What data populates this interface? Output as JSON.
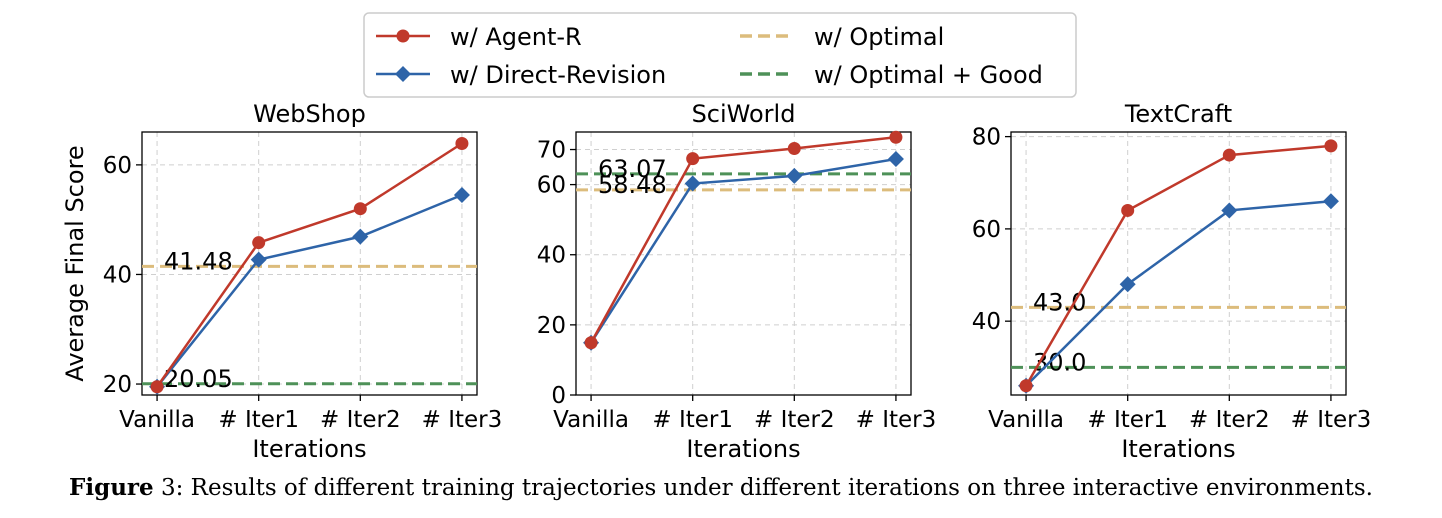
{
  "legend": {
    "items": [
      {
        "label": "w/ Agent-R",
        "color": "#c0392b",
        "style": "line-circle"
      },
      {
        "label": "w/ Direct-Revision",
        "color": "#2e64a8",
        "style": "line-diamond"
      },
      {
        "label": "w/ Optimal",
        "color": "#dcbc7c",
        "style": "dashed"
      },
      {
        "label": "w/ Optimal + Good",
        "color": "#4e9158",
        "style": "dashed"
      }
    ]
  },
  "shared": {
    "ylabel": "Average Final Score",
    "xlabel": "Iterations",
    "categories": [
      "Vanilla",
      "# Iter1",
      "# Iter2",
      "# Iter3"
    ]
  },
  "chart_data": [
    {
      "type": "line",
      "title": "WebShop",
      "xlabel": "Iterations",
      "ylabel": "Average Final Score",
      "categories": [
        "Vanilla",
        "# Iter1",
        "# Iter2",
        "# Iter3"
      ],
      "ylim": [
        18,
        66
      ],
      "yticks": [
        20,
        40,
        60
      ],
      "grid": true,
      "series": [
        {
          "name": "w/ Agent-R",
          "values": [
            19.5,
            45.8,
            52.0,
            63.9
          ]
        },
        {
          "name": "w/ Direct-Revision",
          "values": [
            19.5,
            42.7,
            46.9,
            54.5
          ]
        }
      ],
      "hlines": [
        {
          "name": "w/ Optimal",
          "value": 41.48,
          "label": "41.48"
        },
        {
          "name": "w/ Optimal + Good",
          "value": 20.05,
          "label": "20.05"
        }
      ]
    },
    {
      "type": "line",
      "title": "SciWorld",
      "xlabel": "Iterations",
      "ylabel": "",
      "categories": [
        "Vanilla",
        "# Iter1",
        "# Iter2",
        "# Iter3"
      ],
      "ylim": [
        0,
        75
      ],
      "yticks": [
        0,
        20,
        40,
        60,
        70
      ],
      "grid": true,
      "series": [
        {
          "name": "w/ Agent-R",
          "values": [
            14.9,
            67.4,
            70.3,
            73.5
          ]
        },
        {
          "name": "w/ Direct-Revision",
          "values": [
            14.9,
            60.3,
            62.5,
            67.3
          ]
        }
      ],
      "hlines": [
        {
          "name": "w/ Optimal",
          "value": 58.48,
          "label": "58.48"
        },
        {
          "name": "w/ Optimal + Good",
          "value": 63.07,
          "label": "63.07"
        }
      ]
    },
    {
      "type": "line",
      "title": "TextCraft",
      "xlabel": "Iterations",
      "ylabel": "",
      "categories": [
        "Vanilla",
        "# Iter1",
        "# Iter2",
        "# Iter3"
      ],
      "ylim": [
        24,
        81
      ],
      "yticks": [
        40,
        60,
        80
      ],
      "grid": true,
      "series": [
        {
          "name": "w/ Agent-R",
          "values": [
            26.0,
            64.0,
            76.0,
            78.0
          ]
        },
        {
          "name": "w/ Direct-Revision",
          "values": [
            26.0,
            48.0,
            64.0,
            66.0
          ]
        }
      ],
      "hlines": [
        {
          "name": "w/ Optimal",
          "value": 43.0,
          "label": "43.0"
        },
        {
          "name": "w/ Optimal + Good",
          "value": 30.0,
          "label": "30.0"
        }
      ]
    }
  ],
  "caption": {
    "figure_label": "Figure",
    "text": " 3: Results of different training trajectories under different iterations on three interactive environments."
  }
}
